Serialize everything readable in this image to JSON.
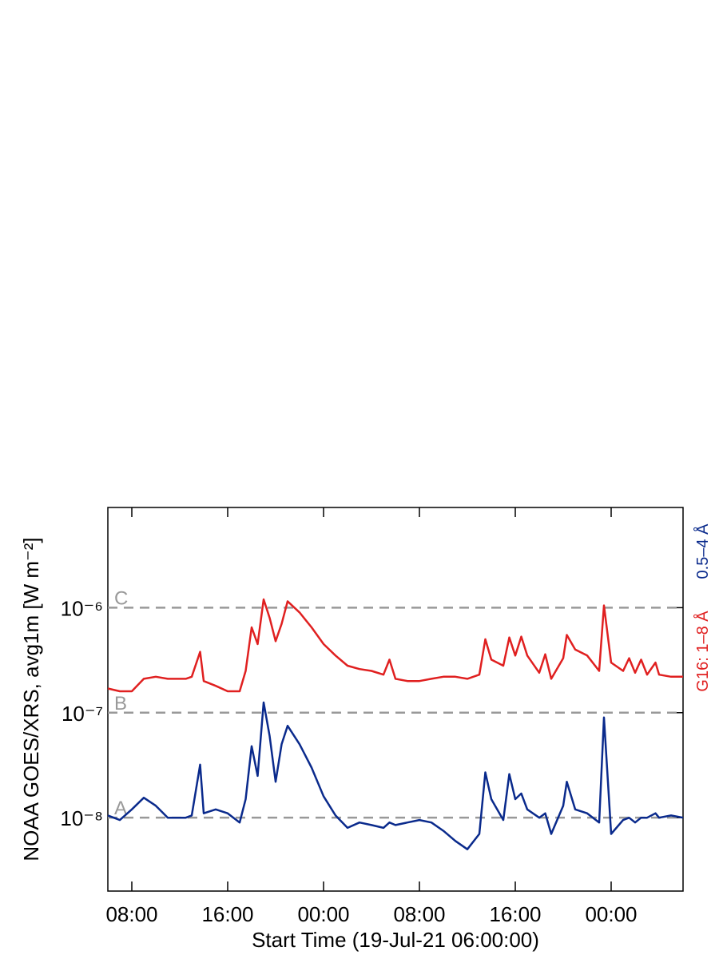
{
  "chart_data": {
    "type": "line",
    "x_label": "Start Time (19-Jul-21 06:00:00)",
    "y_label": "NOAA GOES/XRS, avg1m [W m⁻²]",
    "log_y": true,
    "xlim": [
      0,
      48
    ],
    "xticks": [
      {
        "value": 2,
        "label": "08:00"
      },
      {
        "value": 10,
        "label": "16:00"
      },
      {
        "value": 18,
        "label": "00:00"
      },
      {
        "value": 26,
        "label": "08:00"
      },
      {
        "value": 34,
        "label": "16:00"
      },
      {
        "value": 42,
        "label": "00:00"
      }
    ],
    "ylim": [
      2e-09,
      9e-06
    ],
    "yticks": [
      {
        "value": 1e-08,
        "label": "10⁻⁸"
      },
      {
        "value": 1e-07,
        "label": "10⁻⁷"
      },
      {
        "value": 1e-06,
        "label": "10⁻⁶"
      }
    ],
    "flare_classes": [
      {
        "label": "A",
        "value": 1e-08
      },
      {
        "label": "B",
        "value": 1e-07
      },
      {
        "label": "C",
        "value": 1e-06
      }
    ],
    "x": [
      0,
      1,
      2,
      3,
      4,
      5,
      6,
      6.5,
      7,
      7.7,
      8,
      9,
      10,
      11,
      11.5,
      12,
      12.5,
      13,
      13.5,
      14,
      14.5,
      15,
      16,
      17,
      18,
      19,
      20,
      21,
      22,
      23,
      23.5,
      24,
      25,
      26,
      27,
      28,
      29,
      30,
      31,
      31.5,
      32,
      33,
      33.5,
      34,
      34.5,
      35,
      36,
      36.5,
      37,
      38,
      38.3,
      39,
      40,
      41,
      41.4,
      42,
      43,
      43.5,
      44,
      44.5,
      45,
      45.7,
      46,
      47,
      48
    ],
    "series": [
      {
        "name": "0.5–4 Å",
        "color": "#0a2a8c",
        "values": [
          1.05e-08,
          9.5e-09,
          1.2e-08,
          1.55e-08,
          1.3e-08,
          1e-08,
          1e-08,
          1e-08,
          1.05e-08,
          3.2e-08,
          1.1e-08,
          1.2e-08,
          1.1e-08,
          9e-09,
          1.5e-08,
          4.8e-08,
          2.5e-08,
          1.25e-07,
          6e-08,
          2.2e-08,
          5e-08,
          7.5e-08,
          5e-08,
          3e-08,
          1.6e-08,
          1.05e-08,
          8e-09,
          9e-09,
          8.5e-09,
          8e-09,
          9e-09,
          8.5e-09,
          9e-09,
          9.5e-09,
          9e-09,
          7.5e-09,
          6e-09,
          5e-09,
          7e-09,
          2.7e-08,
          1.5e-08,
          9.5e-09,
          2.6e-08,
          1.5e-08,
          1.7e-08,
          1.2e-08,
          1e-08,
          1.1e-08,
          7e-09,
          1.3e-08,
          2.2e-08,
          1.2e-08,
          1.1e-08,
          9e-09,
          9e-08,
          7e-09,
          9.5e-09,
          1e-08,
          9e-09,
          1e-08,
          1e-08,
          1.1e-08,
          1e-08,
          1.05e-08,
          1e-08
        ]
      },
      {
        "name": "G16: 1–8 Å",
        "color": "#e02020",
        "values": [
          1.7e-07,
          1.6e-07,
          1.6e-07,
          2.1e-07,
          2.2e-07,
          2.1e-07,
          2.1e-07,
          2.1e-07,
          2.2e-07,
          3.8e-07,
          2e-07,
          1.8e-07,
          1.6e-07,
          1.6e-07,
          2.5e-07,
          6.5e-07,
          4.5e-07,
          1.2e-06,
          8e-07,
          4.8e-07,
          7e-07,
          1.15e-06,
          9e-07,
          6.5e-07,
          4.5e-07,
          3.5e-07,
          2.8e-07,
          2.6e-07,
          2.5e-07,
          2.3e-07,
          3.2e-07,
          2.1e-07,
          2e-07,
          2e-07,
          2.1e-07,
          2.2e-07,
          2.2e-07,
          2.1e-07,
          2.3e-07,
          5e-07,
          3.2e-07,
          2.8e-07,
          5.2e-07,
          3.5e-07,
          5.3e-07,
          3.5e-07,
          2.4e-07,
          3.6e-07,
          2.1e-07,
          3.3e-07,
          5.5e-07,
          4e-07,
          3.5e-07,
          2.5e-07,
          1.05e-06,
          3e-07,
          2.5e-07,
          3.3e-07,
          2.4e-07,
          3.2e-07,
          2.3e-07,
          3e-07,
          2.3e-07,
          2.2e-07,
          2.2e-07
        ]
      }
    ]
  }
}
